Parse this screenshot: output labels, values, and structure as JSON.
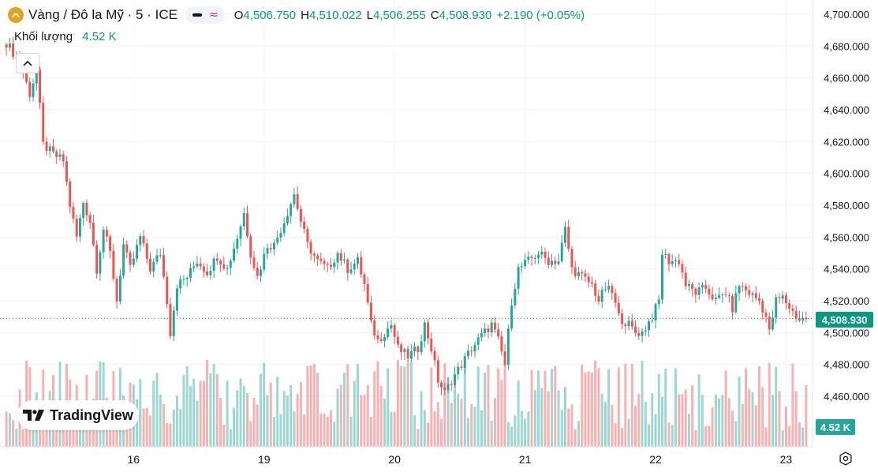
{
  "header": {
    "symbol_title": "Vàng / Đô la Mỹ · 5 · ICE",
    "ohlc": [
      {
        "label": "O",
        "value": "4,506.750"
      },
      {
        "label": "H",
        "value": "4,510.022"
      },
      {
        "label": "L",
        "value": "4,506.255"
      },
      {
        "label": "C",
        "value": "4,508.930"
      }
    ],
    "change": "+2.190 (+0.05%)"
  },
  "volume": {
    "label": "Khối lượng",
    "value": "4.52 K"
  },
  "branding": {
    "logo_text": "TradingView"
  },
  "price_label": "4,508.930",
  "volume_label": "4.52 K",
  "colors": {
    "up": "#26a69a",
    "down": "#ef5350",
    "accent": "#089981",
    "gold": "#e0a31e"
  },
  "icons": [
    "gold-coin-icon",
    "chevron-up-icon",
    "settings-icon"
  ],
  "chart_data": {
    "type": "candlestick",
    "y_axis": {
      "ticks": [
        "4,700.000",
        "4,680.000",
        "4,660.000",
        "4,640.000",
        "4,620.000",
        "4,600.000",
        "4,580.000",
        "4,560.000",
        "4,540.000",
        "4,520.000",
        "4,500.000",
        "4,480.000",
        "4,460.000"
      ],
      "tick_values": [
        4700,
        4680,
        4660,
        4640,
        4620,
        4600,
        4580,
        4560,
        4540,
        4520,
        4500,
        4480,
        4460
      ],
      "range": [
        4452,
        4712
      ]
    },
    "x_axis": {
      "labels": [
        "16",
        "19",
        "20",
        "21",
        "22",
        "23"
      ],
      "label_index": [
        38,
        77,
        116,
        155,
        194,
        233
      ]
    },
    "last_price": 4508.93,
    "n_bars": 240,
    "close_path": [
      [
        0,
        4682
      ],
      [
        4,
        4670
      ],
      [
        7,
        4650
      ],
      [
        9,
        4665
      ],
      [
        11,
        4618
      ],
      [
        14,
        4612
      ],
      [
        17,
        4608
      ],
      [
        19,
        4580
      ],
      [
        21,
        4560
      ],
      [
        23,
        4582
      ],
      [
        25,
        4570
      ],
      [
        27,
        4540
      ],
      [
        29,
        4565
      ],
      [
        31,
        4550
      ],
      [
        33,
        4520
      ],
      [
        35,
        4555
      ],
      [
        37,
        4540
      ],
      [
        40,
        4560
      ],
      [
        43,
        4540
      ],
      [
        46,
        4550
      ],
      [
        48,
        4520
      ],
      [
        49,
        4500
      ],
      [
        51,
        4530
      ],
      [
        54,
        4535
      ],
      [
        57,
        4545
      ],
      [
        60,
        4538
      ],
      [
        63,
        4548
      ],
      [
        66,
        4540
      ],
      [
        69,
        4560
      ],
      [
        71,
        4575
      ],
      [
        73,
        4550
      ],
      [
        75,
        4535
      ],
      [
        78,
        4555
      ],
      [
        80,
        4555
      ],
      [
        83,
        4570
      ],
      [
        86,
        4587
      ],
      [
        88,
        4570
      ],
      [
        90,
        4555
      ],
      [
        93,
        4545
      ],
      [
        96,
        4540
      ],
      [
        99,
        4550
      ],
      [
        102,
        4540
      ],
      [
        105,
        4545
      ],
      [
        107,
        4530
      ],
      [
        109,
        4505
      ],
      [
        111,
        4495
      ],
      [
        113,
        4500
      ],
      [
        115,
        4505
      ],
      [
        117,
        4490
      ],
      [
        120,
        4485
      ],
      [
        123,
        4490
      ],
      [
        125,
        4505
      ],
      [
        127,
        4490
      ],
      [
        129,
        4470
      ],
      [
        131,
        4462
      ],
      [
        133,
        4470
      ],
      [
        136,
        4480
      ],
      [
        139,
        4490
      ],
      [
        142,
        4498
      ],
      [
        145,
        4505
      ],
      [
        147,
        4495
      ],
      [
        149,
        4480
      ],
      [
        151,
        4520
      ],
      [
        153,
        4540
      ],
      [
        156,
        4545
      ],
      [
        159,
        4550
      ],
      [
        162,
        4545
      ],
      [
        165,
        4545
      ],
      [
        167,
        4565
      ],
      [
        169,
        4540
      ],
      [
        172,
        4535
      ],
      [
        175,
        4530
      ],
      [
        177,
        4520
      ],
      [
        179,
        4528
      ],
      [
        181,
        4525
      ],
      [
        183,
        4510
      ],
      [
        186,
        4505
      ],
      [
        188,
        4500
      ],
      [
        190,
        4500
      ],
      [
        193,
        4510
      ],
      [
        195,
        4520
      ],
      [
        196,
        4550
      ],
      [
        198,
        4545
      ],
      [
        201,
        4545
      ],
      [
        203,
        4530
      ],
      [
        206,
        4525
      ],
      [
        209,
        4528
      ],
      [
        212,
        4520
      ],
      [
        215,
        4525
      ],
      [
        217,
        4515
      ],
      [
        219,
        4530
      ],
      [
        222,
        4525
      ],
      [
        225,
        4520
      ],
      [
        227,
        4510
      ],
      [
        228,
        4500
      ],
      [
        230,
        4520
      ],
      [
        232,
        4522
      ],
      [
        235,
        4513
      ],
      [
        237,
        4508
      ],
      [
        239,
        4509
      ]
    ],
    "series": [
      {
        "name": "Vàng / Đô la Mỹ",
        "kind": "price"
      },
      {
        "name": "Khối lượng",
        "kind": "volume"
      }
    ]
  }
}
